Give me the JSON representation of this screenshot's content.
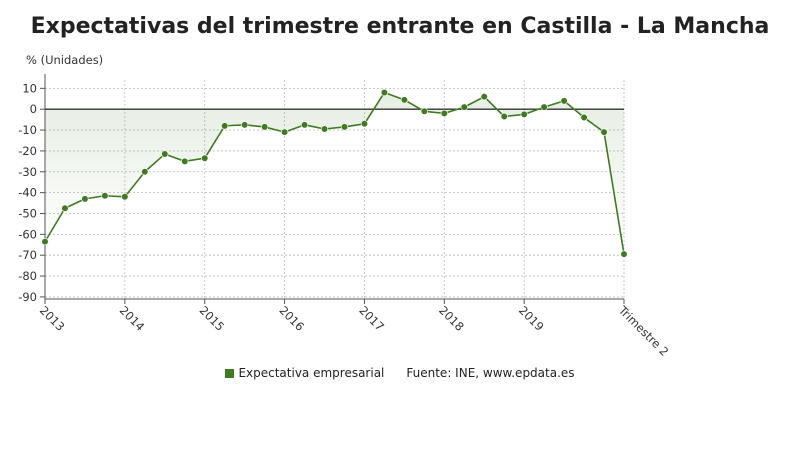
{
  "title": "Expectativas del trimestre entrante en Castilla - La Mancha",
  "legend": {
    "series_label": "Expectativa empresarial",
    "source": "Fuente: INE, www.epdata.es"
  },
  "colors": {
    "line": "#3f7a22",
    "fill_top": "#3f7a22",
    "zero_line": "#333333",
    "grid": "#bbbbbb"
  },
  "chart_data": {
    "type": "line",
    "ylabel": "% (Unidades)",
    "ylim": [
      -91,
      14
    ],
    "yticks": [
      10,
      0,
      -10,
      -20,
      -30,
      -40,
      -50,
      -60,
      -70,
      -80,
      -90
    ],
    "x_tick_labels": [
      "2013",
      "2014",
      "2015",
      "2016",
      "2017",
      "2018",
      "2019",
      "Trimestre 2"
    ],
    "x_tick_index": [
      0,
      4,
      8,
      12,
      16,
      20,
      24,
      29
    ],
    "grid": true,
    "legend_position": "bottom",
    "series": [
      {
        "name": "Expectativa empresarial",
        "values": [
          -63.5,
          -47.5,
          -43,
          -41.5,
          -42,
          -30,
          -21.5,
          -25,
          -23.5,
          -8,
          -7.5,
          -8.5,
          -11,
          -7.5,
          -9.5,
          -8.5,
          -7,
          8,
          4.5,
          -1,
          -2,
          1,
          6,
          -3.5,
          -2.5,
          1,
          4,
          -4,
          -11,
          -69.5
        ]
      }
    ]
  }
}
